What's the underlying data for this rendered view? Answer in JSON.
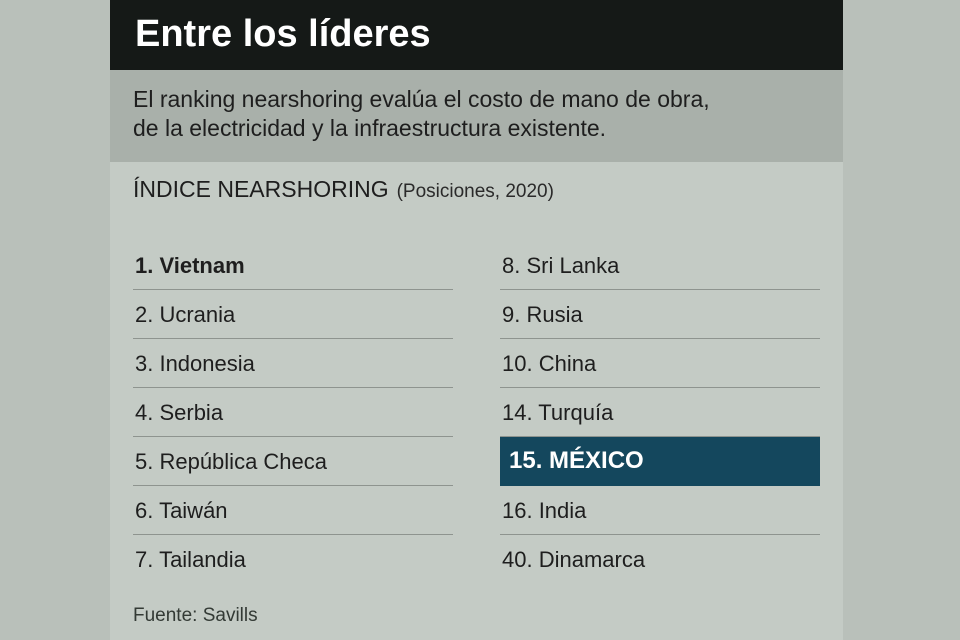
{
  "title": "Entre los líderes",
  "intro": {
    "line1": "El ranking nearshoring evalúa el costo de mano de obra,",
    "line2": "de la electricidad y la infraestructura existente."
  },
  "index": {
    "title": "ÍNDICE NEARSHORING",
    "subtitle": "(Posiciones, 2020)"
  },
  "left_column": [
    {
      "text": "1. Vietnam"
    },
    {
      "text": "2. Ucrania"
    },
    {
      "text": "3. Indonesia"
    },
    {
      "text": "4. Serbia"
    },
    {
      "text": "5. República Checa"
    },
    {
      "text": "6. Taiwán"
    },
    {
      "text": "7. Tailandia"
    }
  ],
  "right_column": [
    {
      "text": "8. Sri Lanka"
    },
    {
      "text": "9. Rusia"
    },
    {
      "text": "10. China"
    },
    {
      "text": "14. Turquía"
    },
    {
      "text": "15. MÉXICO"
    },
    {
      "text": "16. India"
    },
    {
      "text": "40. Dinamarca"
    }
  ],
  "highlight_color": "#14475d",
  "source": "Fuente: Savills"
}
